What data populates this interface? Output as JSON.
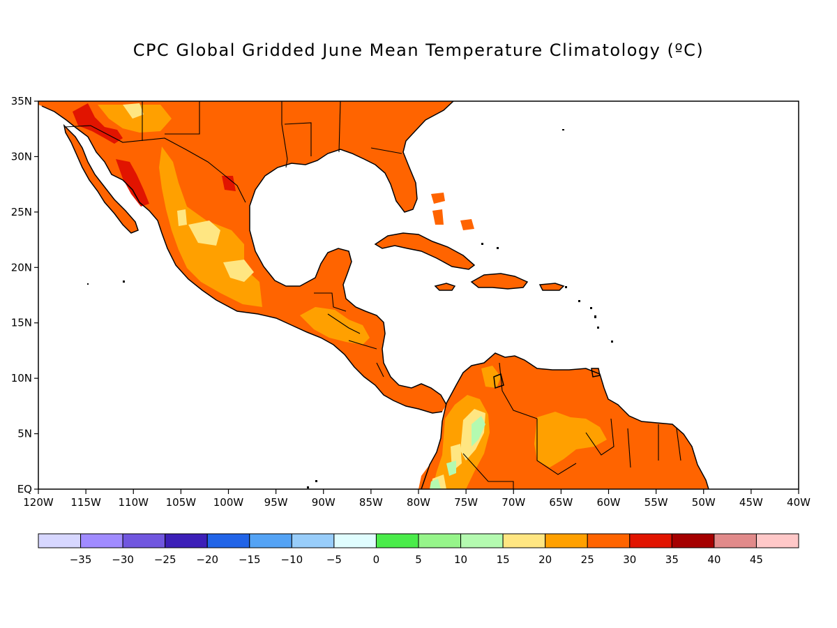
{
  "title": "CPC Global Gridded June Mean Temperature Climatology (ºC)",
  "map": {
    "type": "filled-contour-map",
    "lon_range": [
      -120,
      -40
    ],
    "lat_range": [
      0,
      35
    ],
    "lon_ticks": [
      {
        "value": -120,
        "label": "120W"
      },
      {
        "value": -115,
        "label": "115W"
      },
      {
        "value": -110,
        "label": "110W"
      },
      {
        "value": -105,
        "label": "105W"
      },
      {
        "value": -100,
        "label": "100W"
      },
      {
        "value": -95,
        "label": "95W"
      },
      {
        "value": -90,
        "label": "90W"
      },
      {
        "value": -85,
        "label": "85W"
      },
      {
        "value": -80,
        "label": "80W"
      },
      {
        "value": -75,
        "label": "75W"
      },
      {
        "value": -70,
        "label": "70W"
      },
      {
        "value": -65,
        "label": "65W"
      },
      {
        "value": -60,
        "label": "60W"
      },
      {
        "value": -55,
        "label": "55W"
      },
      {
        "value": -50,
        "label": "50W"
      },
      {
        "value": -45,
        "label": "45W"
      },
      {
        "value": -40,
        "label": "40W"
      }
    ],
    "lat_ticks": [
      {
        "value": 0,
        "label": "EQ"
      },
      {
        "value": 5,
        "label": "5N"
      },
      {
        "value": 10,
        "label": "10N"
      },
      {
        "value": 15,
        "label": "15N"
      },
      {
        "value": 20,
        "label": "20N"
      },
      {
        "value": 25,
        "label": "25N"
      },
      {
        "value": 30,
        "label": "30N"
      },
      {
        "value": 35,
        "label": "35N"
      }
    ]
  },
  "colorbar": {
    "colors": [
      "#d7d7ff",
      "#a08bff",
      "#7056df",
      "#3c1fb8",
      "#2164e8",
      "#54a3f5",
      "#98cdfa",
      "#e0fdfe",
      "#4aec4a",
      "#96f58a",
      "#b4fab0",
      "#ffe682",
      "#ffa000",
      "#ff6400",
      "#e11400",
      "#a50000",
      "#e18a8a",
      "#ffc8c8"
    ],
    "labels": [
      "-35",
      "-30",
      "-25",
      "-20",
      "-15",
      "-10",
      "-5",
      "0",
      "5",
      "10",
      "15",
      "20",
      "25",
      "30",
      "35",
      "40",
      "45"
    ]
  }
}
